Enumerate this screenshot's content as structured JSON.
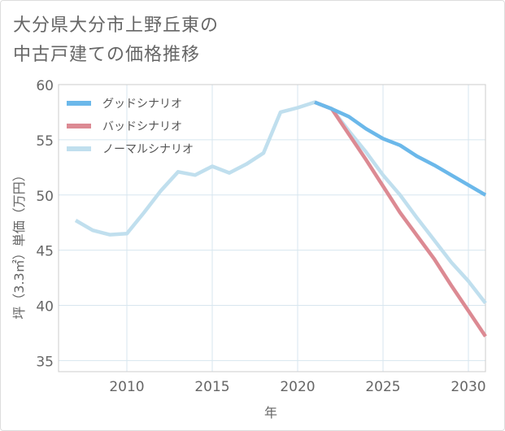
{
  "title": {
    "line1": "大分県大分市上野丘東の",
    "line2": "中古戸建ての価格推移"
  },
  "chart_data": {
    "type": "line",
    "xlabel": "年",
    "ylabel": "坪（3.3㎡）単価（万円）",
    "xlim": [
      2006,
      2031
    ],
    "ylim": [
      34,
      60
    ],
    "xticks": [
      2010,
      2015,
      2020,
      2025,
      2030
    ],
    "yticks": [
      35,
      40,
      45,
      50,
      55,
      60
    ],
    "grid": true,
    "legend_position": "top-left",
    "series": [
      {
        "name": "グッドシナリオ",
        "color": "#6bb8ea",
        "x": [
          2021,
          2022,
          2023,
          2024,
          2025,
          2026,
          2027,
          2028,
          2029,
          2030,
          2031
        ],
        "y": [
          58.4,
          57.8,
          57.1,
          56.0,
          55.1,
          54.5,
          53.5,
          52.7,
          51.8,
          50.9,
          50.0
        ]
      },
      {
        "name": "バッドシナリオ",
        "color": "#dc8a93",
        "x": [
          2021,
          2022,
          2023,
          2024,
          2025,
          2026,
          2027,
          2028,
          2029,
          2030,
          2031
        ],
        "y": [
          58.4,
          57.8,
          55.5,
          53.2,
          50.8,
          48.4,
          46.3,
          44.2,
          41.8,
          39.5,
          37.2
        ]
      },
      {
        "name": "ノーマルシナリオ",
        "color": "#c0dfee",
        "x": [
          2007,
          2008,
          2009,
          2010,
          2011,
          2012,
          2013,
          2014,
          2015,
          2016,
          2017,
          2018,
          2019,
          2020,
          2021,
          2022,
          2023,
          2024,
          2025,
          2026,
          2027,
          2028,
          2029,
          2030,
          2031
        ],
        "y": [
          47.7,
          46.8,
          46.4,
          46.5,
          48.4,
          50.4,
          52.1,
          51.8,
          52.6,
          52.0,
          52.8,
          53.8,
          57.5,
          57.9,
          58.4,
          57.8,
          55.8,
          53.9,
          51.8,
          50.0,
          47.9,
          45.9,
          43.9,
          42.2,
          40.2
        ]
      }
    ]
  }
}
